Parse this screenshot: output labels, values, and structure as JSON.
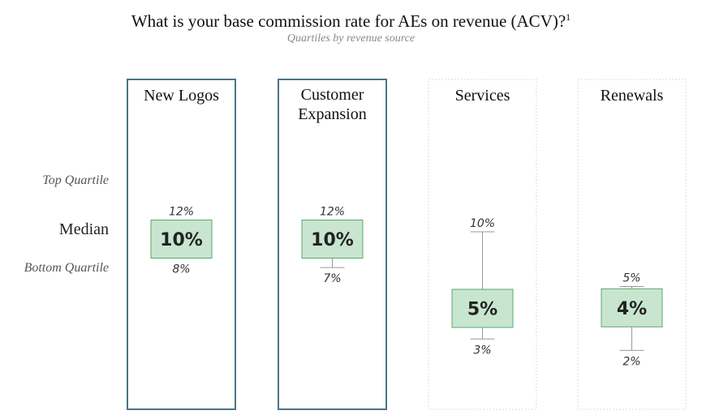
{
  "title": "What is your base commission rate for AEs on revenue (ACV)?",
  "title_footnote": "1",
  "subtitle": "Quartiles by revenue source",
  "row_labels": {
    "top": "Top Quartile",
    "median": "Median",
    "bottom": "Bottom Quartile"
  },
  "colors": {
    "highlight_border": "#4a7585",
    "faint_border": "#dddddd",
    "box_fill": "#c8e6cf",
    "box_stroke": "#5aa86e",
    "whisker": "#999999"
  },
  "chart_data": {
    "type": "boxplot",
    "title": "What is your base commission rate for AEs on revenue (ACV)?",
    "subtitle": "Quartiles by revenue source",
    "unit": "%",
    "categories": [
      "New Logos",
      "Customer Expansion",
      "Services",
      "Renewals"
    ],
    "series": [
      {
        "category": "New Logos",
        "label_lines": [
          "New Logos"
        ],
        "top": 12,
        "median": 10,
        "bottom": 8,
        "top_label": "12%",
        "median_label": "10%",
        "bottom_label": "8%",
        "highlighted": true
      },
      {
        "category": "Customer Expansion",
        "label_lines": [
          "Customer",
          "Expansion"
        ],
        "top": 12,
        "median": 10,
        "bottom": 7,
        "top_label": "12%",
        "median_label": "10%",
        "bottom_label": "7%",
        "highlighted": true
      },
      {
        "category": "Services",
        "label_lines": [
          "Services"
        ],
        "top": 10,
        "median": 5,
        "bottom": 3,
        "top_label": "10%",
        "median_label": "5%",
        "bottom_label": "3%",
        "highlighted": false
      },
      {
        "category": "Renewals",
        "label_lines": [
          "Renewals"
        ],
        "top": 5,
        "median": 4,
        "bottom": 2,
        "top_label": "5%",
        "median_label": "4%",
        "bottom_label": "2%",
        "highlighted": false
      }
    ]
  }
}
